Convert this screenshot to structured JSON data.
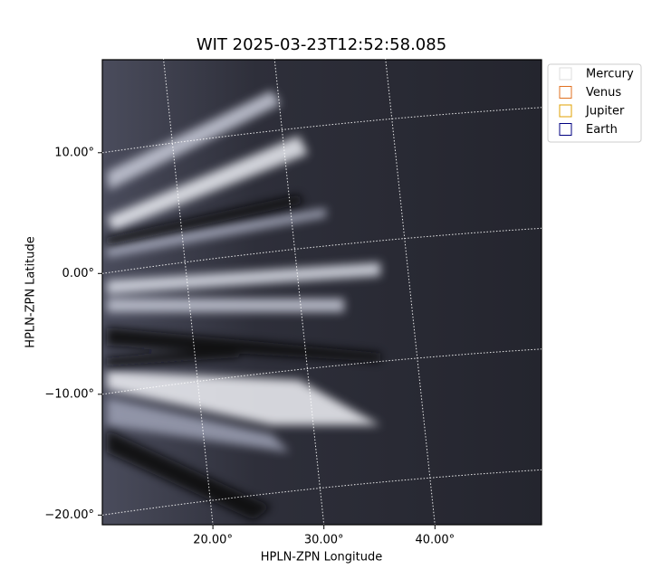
{
  "chart_data": {
    "type": "image",
    "title": "WIT 2025-03-23T12:52:58.085",
    "x_label": "HPLN-ZPN Longitude",
    "y_label": "HPLN-ZPN Latitude",
    "xlim": [
      10.04,
      49.6
    ],
    "ylim": [
      -20.8,
      17.7
    ],
    "xticks": [
      {
        "value": 20,
        "label": "20.00°"
      },
      {
        "value": 30,
        "label": "30.00°"
      },
      {
        "value": 40,
        "label": "40.00°"
      }
    ],
    "yticks": [
      {
        "value": 10,
        "label": "10.00°"
      },
      {
        "value": 0,
        "label": "0.00°"
      },
      {
        "value": -10,
        "label": "−10.00°"
      },
      {
        "value": -20,
        "label": "−20.00°"
      }
    ],
    "grid": true,
    "legend": [
      {
        "name": "Mercury",
        "color": "#dddddd"
      },
      {
        "name": "Venus",
        "color": "#e07020"
      },
      {
        "name": "Jupiter",
        "color": "#e0a000"
      },
      {
        "name": "Earth",
        "color": "#000080"
      }
    ]
  }
}
